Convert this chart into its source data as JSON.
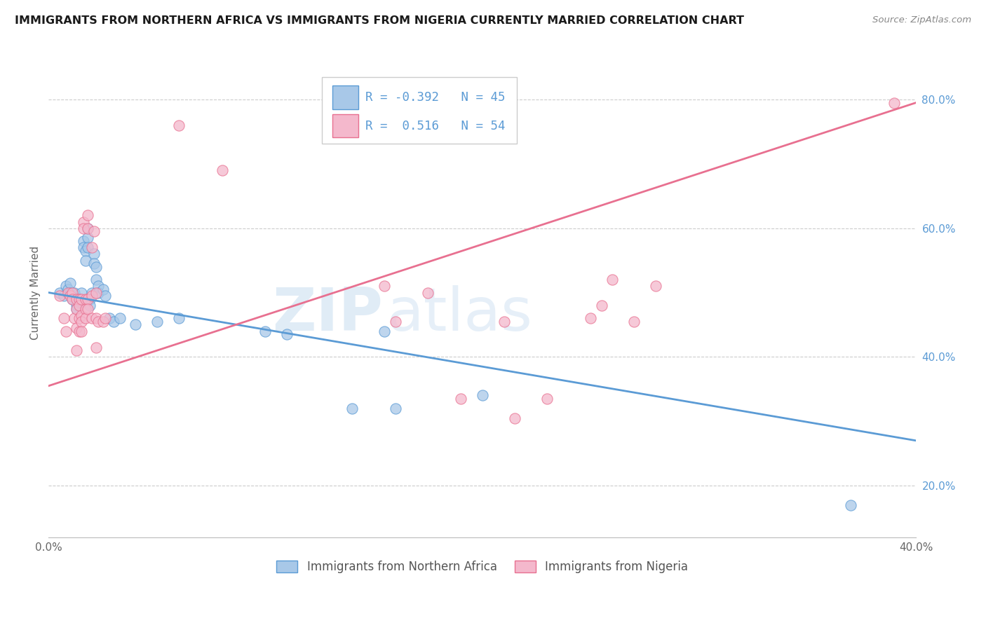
{
  "title": "IMMIGRANTS FROM NORTHERN AFRICA VS IMMIGRANTS FROM NIGERIA CURRENTLY MARRIED CORRELATION CHART",
  "source": "Source: ZipAtlas.com",
  "ylabel": "Currently Married",
  "legend_blue_label": "Immigrants from Northern Africa",
  "legend_pink_label": "Immigrants from Nigeria",
  "R_blue": -0.392,
  "N_blue": 45,
  "R_pink": 0.516,
  "N_pink": 54,
  "xlim": [
    0.0,
    0.4
  ],
  "ylim": [
    0.12,
    0.88
  ],
  "x_ticks": [
    0.0,
    0.1,
    0.2,
    0.3,
    0.4
  ],
  "x_tick_labels": [
    "0.0%",
    "",
    "",
    "",
    "40.0%"
  ],
  "y_ticks_right": [
    0.2,
    0.4,
    0.6,
    0.8
  ],
  "y_tick_labels_right": [
    "20.0%",
    "40.0%",
    "60.0%",
    "80.0%"
  ],
  "watermark_left": "ZIP",
  "watermark_right": "atlas",
  "blue_color": "#a8c8e8",
  "pink_color": "#f4b8cc",
  "blue_line_color": "#5b9bd5",
  "pink_line_color": "#e87090",
  "blue_scatter": [
    [
      0.005,
      0.5
    ],
    [
      0.007,
      0.495
    ],
    [
      0.008,
      0.51
    ],
    [
      0.009,
      0.505
    ],
    [
      0.01,
      0.515
    ],
    [
      0.01,
      0.5
    ],
    [
      0.011,
      0.49
    ],
    [
      0.012,
      0.5
    ],
    [
      0.013,
      0.48
    ],
    [
      0.013,
      0.475
    ],
    [
      0.014,
      0.49
    ],
    [
      0.014,
      0.485
    ],
    [
      0.015,
      0.5
    ],
    [
      0.015,
      0.485
    ],
    [
      0.016,
      0.58
    ],
    [
      0.016,
      0.57
    ],
    [
      0.017,
      0.565
    ],
    [
      0.017,
      0.55
    ],
    [
      0.018,
      0.6
    ],
    [
      0.018,
      0.585
    ],
    [
      0.018,
      0.57
    ],
    [
      0.019,
      0.49
    ],
    [
      0.019,
      0.48
    ],
    [
      0.02,
      0.5
    ],
    [
      0.021,
      0.56
    ],
    [
      0.021,
      0.545
    ],
    [
      0.022,
      0.54
    ],
    [
      0.022,
      0.52
    ],
    [
      0.023,
      0.51
    ],
    [
      0.023,
      0.5
    ],
    [
      0.025,
      0.505
    ],
    [
      0.026,
      0.495
    ],
    [
      0.028,
      0.46
    ],
    [
      0.03,
      0.455
    ],
    [
      0.033,
      0.46
    ],
    [
      0.04,
      0.45
    ],
    [
      0.05,
      0.455
    ],
    [
      0.06,
      0.46
    ],
    [
      0.1,
      0.44
    ],
    [
      0.11,
      0.435
    ],
    [
      0.14,
      0.32
    ],
    [
      0.155,
      0.44
    ],
    [
      0.16,
      0.32
    ],
    [
      0.2,
      0.34
    ],
    [
      0.37,
      0.17
    ]
  ],
  "pink_scatter": [
    [
      0.005,
      0.495
    ],
    [
      0.007,
      0.46
    ],
    [
      0.008,
      0.44
    ],
    [
      0.009,
      0.5
    ],
    [
      0.01,
      0.495
    ],
    [
      0.011,
      0.5
    ],
    [
      0.011,
      0.49
    ],
    [
      0.012,
      0.46
    ],
    [
      0.013,
      0.49
    ],
    [
      0.013,
      0.475
    ],
    [
      0.013,
      0.445
    ],
    [
      0.013,
      0.41
    ],
    [
      0.014,
      0.49
    ],
    [
      0.014,
      0.48
    ],
    [
      0.014,
      0.46
    ],
    [
      0.014,
      0.44
    ],
    [
      0.015,
      0.49
    ],
    [
      0.015,
      0.465
    ],
    [
      0.015,
      0.455
    ],
    [
      0.015,
      0.44
    ],
    [
      0.016,
      0.61
    ],
    [
      0.016,
      0.6
    ],
    [
      0.017,
      0.49
    ],
    [
      0.017,
      0.475
    ],
    [
      0.017,
      0.46
    ],
    [
      0.018,
      0.62
    ],
    [
      0.018,
      0.6
    ],
    [
      0.018,
      0.49
    ],
    [
      0.018,
      0.475
    ],
    [
      0.02,
      0.57
    ],
    [
      0.02,
      0.495
    ],
    [
      0.02,
      0.46
    ],
    [
      0.021,
      0.595
    ],
    [
      0.022,
      0.5
    ],
    [
      0.022,
      0.46
    ],
    [
      0.022,
      0.415
    ],
    [
      0.023,
      0.455
    ],
    [
      0.025,
      0.455
    ],
    [
      0.026,
      0.46
    ],
    [
      0.06,
      0.76
    ],
    [
      0.08,
      0.69
    ],
    [
      0.155,
      0.51
    ],
    [
      0.16,
      0.455
    ],
    [
      0.175,
      0.5
    ],
    [
      0.19,
      0.335
    ],
    [
      0.21,
      0.455
    ],
    [
      0.215,
      0.305
    ],
    [
      0.23,
      0.335
    ],
    [
      0.25,
      0.46
    ],
    [
      0.255,
      0.48
    ],
    [
      0.26,
      0.52
    ],
    [
      0.27,
      0.455
    ],
    [
      0.28,
      0.51
    ],
    [
      0.39,
      0.795
    ]
  ],
  "background_color": "#ffffff",
  "grid_color": "#cccccc"
}
